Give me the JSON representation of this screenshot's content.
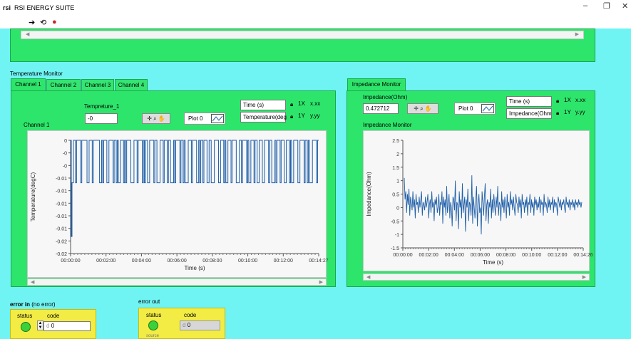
{
  "window": {
    "logo": "rsi",
    "title": "RSI ENERGY SUITE",
    "controls": [
      "–",
      "❐",
      "✕"
    ]
  },
  "toolbar": {
    "run_icon": "run-arrow-icon",
    "continuous_run_icon": "continuous-run-icon",
    "stop_icon": "stop-icon",
    "run_glyph": "➔",
    "continuous_glyph": "⟲",
    "stop_glyph": "●"
  },
  "top_scroll": {
    "left": "◀",
    "right": "▶"
  },
  "temperature": {
    "section_label": "Temperature Monitor",
    "tabs": [
      "Channel 1",
      "Channel  2",
      "Channel 3",
      "Channel 4"
    ],
    "active_tab": 0,
    "indicator_label": "Tempreture_1",
    "indicator_value": "-0",
    "plot_legend": "Plot 0",
    "x_scale_label": "Time (s)",
    "y_scale_label": "Temperature(deg",
    "x_format": "x.xx",
    "y_format": "y.yy",
    "x_axis_icon": "1X",
    "y_axis_icon": "1Y",
    "graph_title": "Channel 1",
    "scroll_left": "◀",
    "scroll_right": "▶"
  },
  "impedance": {
    "tab_label": "Impedance Monitor",
    "indicator_label": "Impedance(Ohm)",
    "indicator_value": "0.472712",
    "plot_legend": "Plot 0",
    "x_scale_label": "Time (s)",
    "y_scale_label": "Impedance(Ohm",
    "x_format": "x.xx",
    "y_format": "y.yy",
    "x_axis_icon": "1X",
    "y_axis_icon": "1Y",
    "graph_title": "Impedance Monitor",
    "scroll_left": "◀",
    "scroll_right": "▶"
  },
  "error_in": {
    "label_bold": "error in",
    "label_rest": " (no error)",
    "status_label": "status",
    "code_label": "code",
    "code_value": "0",
    "code_prefix": "d"
  },
  "error_out": {
    "label": "error out",
    "status_label": "status",
    "code_label": "code",
    "code_value": "0",
    "code_prefix": "d",
    "source_label": "source"
  },
  "chart_data": [
    {
      "type": "line",
      "title": "Channel 1",
      "xlabel": "Time (s)",
      "ylabel": "Temperature(degC)",
      "x_ticks": [
        "00:00:00",
        "00:02:00",
        "00:04:00",
        "00:06:00",
        "00:08:00",
        "00:10:00",
        "00:12:00",
        "00:14:27"
      ],
      "y_ticks": [
        "0",
        "-0",
        "-0",
        "-0.01",
        "-0.01",
        "-0.01",
        "-0.01",
        "-0.01",
        "-0.02",
        "-0.02"
      ],
      "ylim": [
        -0.02,
        0
      ],
      "xlim_seconds": [
        0,
        867
      ],
      "series": [
        {
          "color": "#1f5fa8",
          "baseline": 0,
          "low_level": -0.0075,
          "initial_dip": -0.017,
          "switch_pattern": [
            1,
            1,
            0,
            1,
            1,
            1,
            1,
            0,
            1,
            1,
            1,
            1,
            1,
            0,
            0,
            1,
            1,
            1,
            0,
            1,
            1,
            1,
            1,
            1,
            1,
            0,
            0,
            1,
            0,
            1,
            1,
            1,
            0,
            0,
            1,
            1,
            1,
            1,
            0,
            1,
            1,
            0,
            1,
            0,
            0,
            1,
            1,
            1,
            0,
            1,
            0,
            1,
            1,
            1,
            1,
            0,
            0,
            0,
            1,
            1,
            1,
            0,
            1,
            1,
            1,
            1,
            0,
            1,
            0,
            1,
            1,
            0,
            0,
            1,
            1,
            1,
            1,
            0,
            1,
            1,
            0,
            0,
            0,
            1,
            1,
            1,
            0,
            1,
            1,
            1,
            0,
            1,
            1,
            0,
            0,
            0,
            1,
            0,
            1,
            1,
            1,
            1,
            0,
            1,
            1,
            0,
            1,
            0,
            0,
            0,
            1,
            1,
            1,
            0,
            1,
            1,
            1,
            1,
            0,
            0,
            1,
            0,
            1,
            1,
            0,
            1,
            1,
            1,
            0,
            0,
            1,
            1,
            0,
            0,
            0,
            1,
            1,
            1,
            1,
            0,
            0,
            1,
            1,
            1,
            0,
            1,
            0,
            0,
            1,
            1,
            1,
            0,
            1,
            1,
            1,
            1,
            0,
            0,
            0,
            1,
            1,
            0,
            1,
            1,
            1,
            1,
            0,
            1,
            0,
            0,
            1,
            1,
            1,
            0,
            1,
            1,
            0,
            0,
            1,
            1,
            1,
            0,
            0,
            1,
            1,
            1,
            1,
            0,
            1,
            1,
            0,
            0,
            0,
            1,
            0,
            1,
            1,
            1,
            0,
            1,
            1,
            1,
            0,
            0,
            1,
            1,
            1,
            0,
            1,
            0,
            0,
            1,
            1,
            1,
            1,
            0,
            0,
            1,
            1,
            1,
            1,
            0,
            1,
            1,
            0,
            1,
            0,
            0,
            0,
            1,
            1,
            1,
            1,
            0,
            1
          ]
        }
      ]
    },
    {
      "type": "line",
      "title": "Impedance Monitor",
      "xlabel": "Time (s)",
      "ylabel": "Impedance(Ohm)",
      "x_ticks": [
        "00:00:00",
        "00:02:00",
        "00:04:00",
        "00:06:00",
        "00:08:00",
        "00:10:00",
        "00:12:00",
        "00:14:26"
      ],
      "y_ticks": [
        "2.5",
        "2",
        "1.5",
        "1",
        "0.5",
        "0",
        "-0.5",
        "-1",
        "-1.5"
      ],
      "ylim": [
        -1.5,
        2.5
      ],
      "xlim_seconds": [
        0,
        866
      ],
      "series": [
        {
          "color": "#1f5fa8",
          "values": [
            1.1,
            0.3,
            0.6,
            -0.2,
            0.5,
            0.1,
            0.7,
            -0.3,
            0.4,
            0.2,
            -0.1,
            0.6,
            0.0,
            0.3,
            -0.4,
            0.5,
            0.1,
            0.2,
            -0.2,
            0.4,
            0.0,
            0.3,
            0.6,
            -0.3,
            0.2,
            0.1,
            -0.1,
            0.4,
            0.0,
            0.2,
            0.5,
            -0.4,
            0.1,
            0.3,
            -0.2,
            0.6,
            0.0,
            0.2,
            -0.5,
            0.3,
            0.1,
            0.4,
            -0.2,
            0.0,
            0.5,
            -0.3,
            0.2,
            0.1,
            0.6,
            -0.6,
            0.4,
            0.0,
            0.3,
            -0.3,
            0.8,
            -0.2,
            0.1,
            0.5,
            -0.4,
            0.2,
            0.0,
            -0.7,
            0.4,
            0.3,
            -0.1,
            1.0,
            -0.5,
            0.2,
            0.1,
            -0.8,
            0.6,
            0.0,
            0.3,
            -0.4,
            0.9,
            -0.2,
            0.1,
            0.4,
            -0.9,
            0.3,
            0.0,
            0.7,
            -0.5,
            0.2,
            0.1,
            -0.3,
            1.2,
            -0.6,
            0.4,
            0.0,
            -0.4,
            0.3,
            0.8,
            -0.7,
            0.1,
            0.5,
            -0.2,
            0.0,
            -1.0,
            0.6,
            0.2,
            -0.3,
            0.4,
            0.9,
            -0.5,
            0.1,
            0.3,
            -0.6,
            0.2,
            0.0,
            0.7,
            -0.4,
            0.3,
            -0.2,
            0.5,
            0.1,
            -0.3,
            0.4,
            0.0,
            0.8,
            -0.3,
            0.2,
            0.1,
            -0.5,
            0.6,
            0.0,
            0.3,
            -0.2,
            0.4,
            0.1,
            -0.4,
            0.5,
            0.0,
            0.2,
            -0.3,
            0.6,
            0.1,
            0.3,
            -0.1,
            0.4,
            0.0,
            -0.3,
            0.5,
            0.2,
            0.1,
            -0.2,
            0.4,
            0.0,
            0.3,
            -0.4,
            0.5,
            0.1,
            0.2,
            -0.2,
            0.3,
            0.0,
            0.4,
            -0.3,
            0.2,
            0.1,
            0.5,
            -0.2,
            0.3,
            0.0,
            0.2,
            -0.3,
            0.4,
            0.1,
            0.3,
            -0.1,
            0.2,
            0.0,
            0.4,
            -0.2,
            0.3,
            0.1,
            0.2,
            -0.3,
            0.5,
            0.0,
            0.2,
            0.1,
            -0.2,
            0.4,
            0.0,
            0.3,
            -0.1,
            0.2,
            0.1,
            0.4,
            -0.2,
            0.3,
            0.0,
            0.2,
            0.1,
            -0.3,
            0.4,
            0.2,
            0.0,
            0.3,
            -0.1,
            0.2,
            0.1,
            0.3,
            0.0,
            -0.2,
            0.4,
            0.1,
            0.2,
            0.0,
            0.3,
            -0.1,
            0.2,
            0.1,
            0.3,
            0.0,
            0.2,
            -0.1,
            0.3,
            0.1,
            0.2,
            0.0,
            0.3,
            0.1,
            0.2,
            0.0,
            0.2
          ]
        }
      ]
    }
  ]
}
